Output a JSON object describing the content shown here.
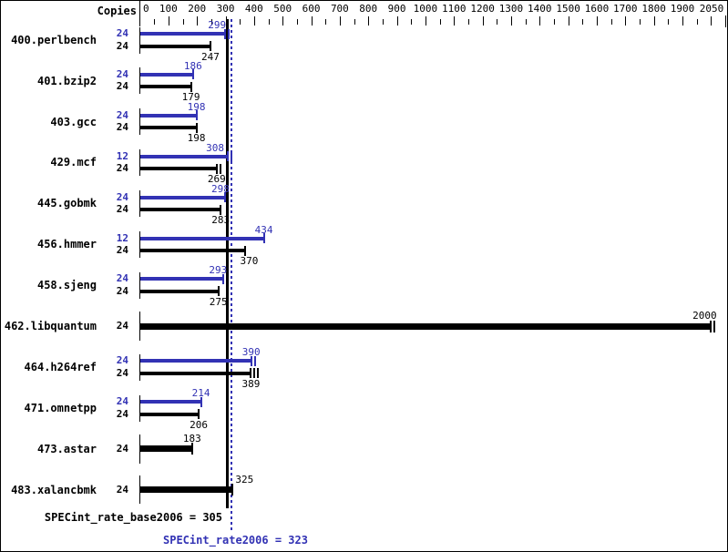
{
  "copies_header": "Copies",
  "chart_data": {
    "type": "bar",
    "orientation": "horizontal",
    "title": "SPECint_rate2006 results graph",
    "axis": {
      "min": 0,
      "max": 2050,
      "minor_step": 50,
      "major_step": 100,
      "tick_labels": [
        0,
        100,
        200,
        300,
        400,
        500,
        600,
        700,
        800,
        900,
        1000,
        1100,
        1200,
        1300,
        1400,
        1500,
        1600,
        1700,
        1800,
        1900,
        2050
      ]
    },
    "colors": {
      "peak": "#3232b4",
      "base": "#000000"
    },
    "reference_lines": [
      {
        "name": "SPECint_rate_base2006",
        "value": 305,
        "label": "SPECint_rate_base2006 = 305",
        "color": "#000000",
        "style": "solid"
      },
      {
        "name": "SPECint_rate2006",
        "value": 323,
        "label": "SPECint_rate2006 = 323",
        "color": "#3232b4",
        "style": "dotted"
      }
    ],
    "benchmarks": [
      {
        "name": "400.perlbench",
        "single": false,
        "peak": {
          "copies": 24,
          "value": 299,
          "marker": "double",
          "label_dx": -9
        },
        "base": {
          "copies": 24,
          "value": 247,
          "marker": "single",
          "label_dx": 0
        }
      },
      {
        "name": "401.bzip2",
        "single": false,
        "peak": {
          "copies": 24,
          "value": 186,
          "marker": "single",
          "label_dx": 0
        },
        "base": {
          "copies": 24,
          "value": 179,
          "marker": "single",
          "label_dx": 0
        }
      },
      {
        "name": "403.gcc",
        "single": false,
        "peak": {
          "copies": 24,
          "value": 198,
          "marker": "single",
          "label_dx": 0
        },
        "base": {
          "copies": 24,
          "value": 198,
          "marker": "single",
          "label_dx": 0
        }
      },
      {
        "name": "429.mcf",
        "single": false,
        "peak": {
          "copies": 12,
          "value": 308,
          "marker": "double",
          "label_dx": -14
        },
        "base": {
          "copies": 24,
          "value": 269,
          "marker": "double",
          "label_dx": 0
        }
      },
      {
        "name": "445.gobmk",
        "single": false,
        "peak": {
          "copies": 24,
          "value": 298,
          "marker": "single",
          "label_dx": -5
        },
        "base": {
          "copies": 24,
          "value": 283,
          "marker": "single",
          "label_dx": 0
        }
      },
      {
        "name": "456.hmmer",
        "single": false,
        "peak": {
          "copies": 12,
          "value": 434,
          "marker": "single",
          "label_dx": 0
        },
        "base": {
          "copies": 24,
          "value": 370,
          "marker": "single",
          "label_dx": 4
        }
      },
      {
        "name": "458.sjeng",
        "single": false,
        "peak": {
          "copies": 24,
          "value": 293,
          "marker": "single",
          "label_dx": -6
        },
        "base": {
          "copies": 24,
          "value": 275,
          "marker": "single",
          "label_dx": 0
        }
      },
      {
        "name": "462.libquantum",
        "single": true,
        "base": {
          "copies": 24,
          "value": 2000,
          "marker": "double",
          "label_dx": -7
        }
      },
      {
        "name": "464.h264ref",
        "single": false,
        "peak": {
          "copies": 24,
          "value": 390,
          "marker": "double",
          "label_dx": 0
        },
        "base": {
          "copies": 24,
          "value": 389,
          "marker": "triple",
          "label_dx": 0
        }
      },
      {
        "name": "471.omnetpp",
        "single": false,
        "peak": {
          "copies": 24,
          "value": 214,
          "marker": "single",
          "label_dx": 0
        },
        "base": {
          "copies": 24,
          "value": 206,
          "marker": "single",
          "label_dx": 0
        }
      },
      {
        "name": "473.astar",
        "single": true,
        "base": {
          "copies": 24,
          "value": 183,
          "marker": "single",
          "label_dx": 0
        }
      },
      {
        "name": "483.xalancbmk",
        "single": true,
        "base": {
          "copies": 24,
          "value": 325,
          "marker": "single",
          "label_dx": 13
        }
      }
    ]
  }
}
